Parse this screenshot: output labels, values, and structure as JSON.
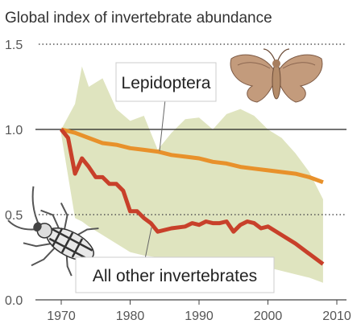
{
  "chart_data": {
    "type": "line",
    "title": "Global index of invertebrate abundance",
    "xlabel": "",
    "ylabel": "",
    "xlim": [
      1970,
      2010
    ],
    "ylim": [
      0,
      1.5
    ],
    "x_ticks": [
      "1970",
      "1980",
      "1990",
      "2000",
      "2010"
    ],
    "y_ticks": [
      "0.0",
      "0.5",
      "1.0",
      "1.5"
    ],
    "grid": "dotted horizontal lines at 0.5 and 1.5, solid line at 1.0",
    "series": [
      {
        "name": "Lepidoptera",
        "color": "#e8912b",
        "x": [
          1970,
          1972,
          1974,
          1976,
          1978,
          1980,
          1982,
          1984,
          1986,
          1988,
          1990,
          1992,
          1994,
          1996,
          1998,
          2000,
          2002,
          2004,
          2006,
          2008
        ],
        "y": [
          1.0,
          0.98,
          0.95,
          0.92,
          0.91,
          0.89,
          0.88,
          0.87,
          0.85,
          0.84,
          0.83,
          0.81,
          0.8,
          0.78,
          0.77,
          0.76,
          0.75,
          0.74,
          0.72,
          0.69
        ]
      },
      {
        "name": "All other invertebrates",
        "color": "#c8402a",
        "x": [
          1970,
          1971,
          1972,
          1973,
          1974,
          1975,
          1976,
          1977,
          1978,
          1979,
          1980,
          1981,
          1982,
          1983,
          1984,
          1986,
          1988,
          1989,
          1990,
          1991,
          1992,
          1993,
          1994,
          1995,
          1996,
          1997,
          1998,
          1999,
          2000,
          2002,
          2004,
          2006,
          2008
        ],
        "y": [
          1.0,
          0.95,
          0.74,
          0.83,
          0.78,
          0.72,
          0.72,
          0.68,
          0.68,
          0.64,
          0.52,
          0.52,
          0.48,
          0.45,
          0.4,
          0.42,
          0.43,
          0.45,
          0.44,
          0.46,
          0.45,
          0.45,
          0.46,
          0.4,
          0.44,
          0.46,
          0.45,
          0.42,
          0.43,
          0.38,
          0.33,
          0.27,
          0.21
        ]
      }
    ],
    "uncertainty_band": {
      "color": "#dfe4bf",
      "x": [
        1970,
        1972,
        1973,
        1974,
        1976,
        1978,
        1980,
        1982,
        1984,
        1986,
        1988,
        1990,
        1992,
        1994,
        1996,
        1998,
        2000,
        2002,
        2004,
        2006,
        2008
      ],
      "upper": [
        1.0,
        1.15,
        1.37,
        1.25,
        1.3,
        1.12,
        1.05,
        1.08,
        0.88,
        0.98,
        1.06,
        1.07,
        1.0,
        1.09,
        1.12,
        1.08,
        1.0,
        0.95,
        0.86,
        0.75,
        0.59
      ],
      "lower": [
        0.97,
        0.48,
        0.46,
        0.43,
        0.38,
        0.33,
        0.28,
        0.26,
        0.25,
        0.24,
        0.23,
        0.22,
        0.22,
        0.21,
        0.2,
        0.2,
        0.19,
        0.17,
        0.15,
        0.13,
        0.1
      ]
    },
    "annotations": [
      {
        "text": "Lepidoptera",
        "icon": "moth-icon"
      },
      {
        "text": "All other invertebrates",
        "icon": "beetle-icon"
      }
    ]
  }
}
